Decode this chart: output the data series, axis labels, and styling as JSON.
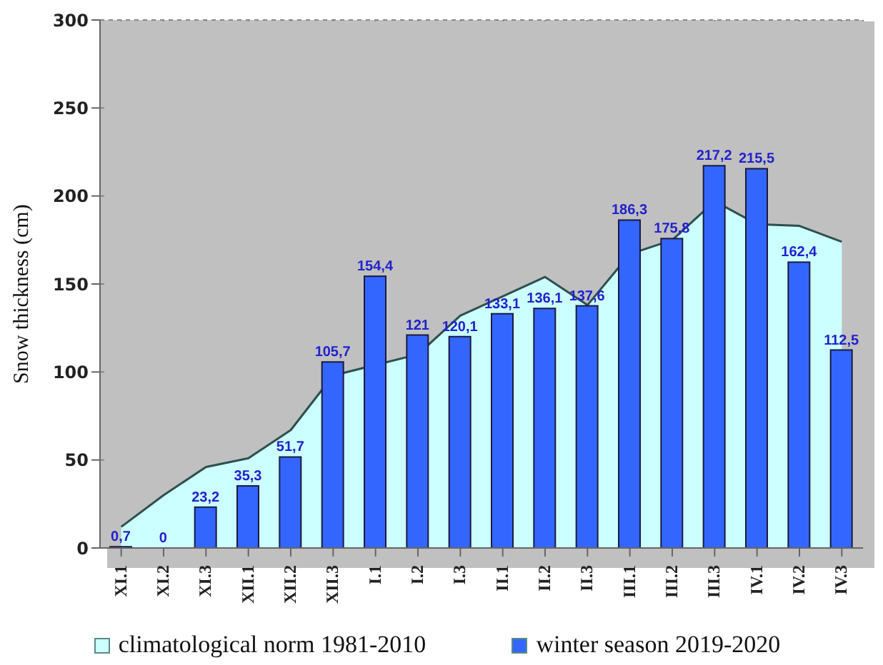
{
  "chart_data": {
    "type": "bar",
    "ylabel": "Snow thickness (cm)",
    "categories": [
      "XI.1",
      "XI.2",
      "XI.3",
      "XII.1",
      "XII.2",
      "XII.3",
      "I.1",
      "I.2",
      "I.3",
      "II.1",
      "II.2",
      "II.3",
      "III.1",
      "III.2",
      "III.3",
      "IV.1",
      "IV.2",
      "IV.3"
    ],
    "series": [
      {
        "name": "climatological norm 1981-2010",
        "type": "area",
        "color": "#ccffff",
        "values": [
          12,
          30,
          46,
          51,
          67,
          98,
          104,
          110,
          132,
          143,
          154,
          138,
          167,
          175,
          197,
          184,
          183,
          174
        ]
      },
      {
        "name": "winter season 2019-2020",
        "color": "#3366ff",
        "values": [
          0.7,
          0,
          23.2,
          35.3,
          51.7,
          105.7,
          154.4,
          121,
          120.1,
          133.1,
          136.1,
          137.6,
          186.3,
          175.8,
          217.2,
          215.5,
          162.4,
          112.5
        ],
        "value_labels": [
          "0,7",
          "0",
          "23,2",
          "35,3",
          "51,7",
          "105,7",
          "154,4",
          "121",
          "120,1",
          "133,1",
          "136,1",
          "137,6",
          "186,3",
          "175,8",
          "217,2",
          "215,5",
          "162,4",
          "112,5"
        ]
      }
    ],
    "ylim": [
      0,
      300
    ],
    "yticks": [
      0,
      50,
      100,
      150,
      200,
      250,
      300
    ],
    "grid": true,
    "legend": "bottom"
  }
}
